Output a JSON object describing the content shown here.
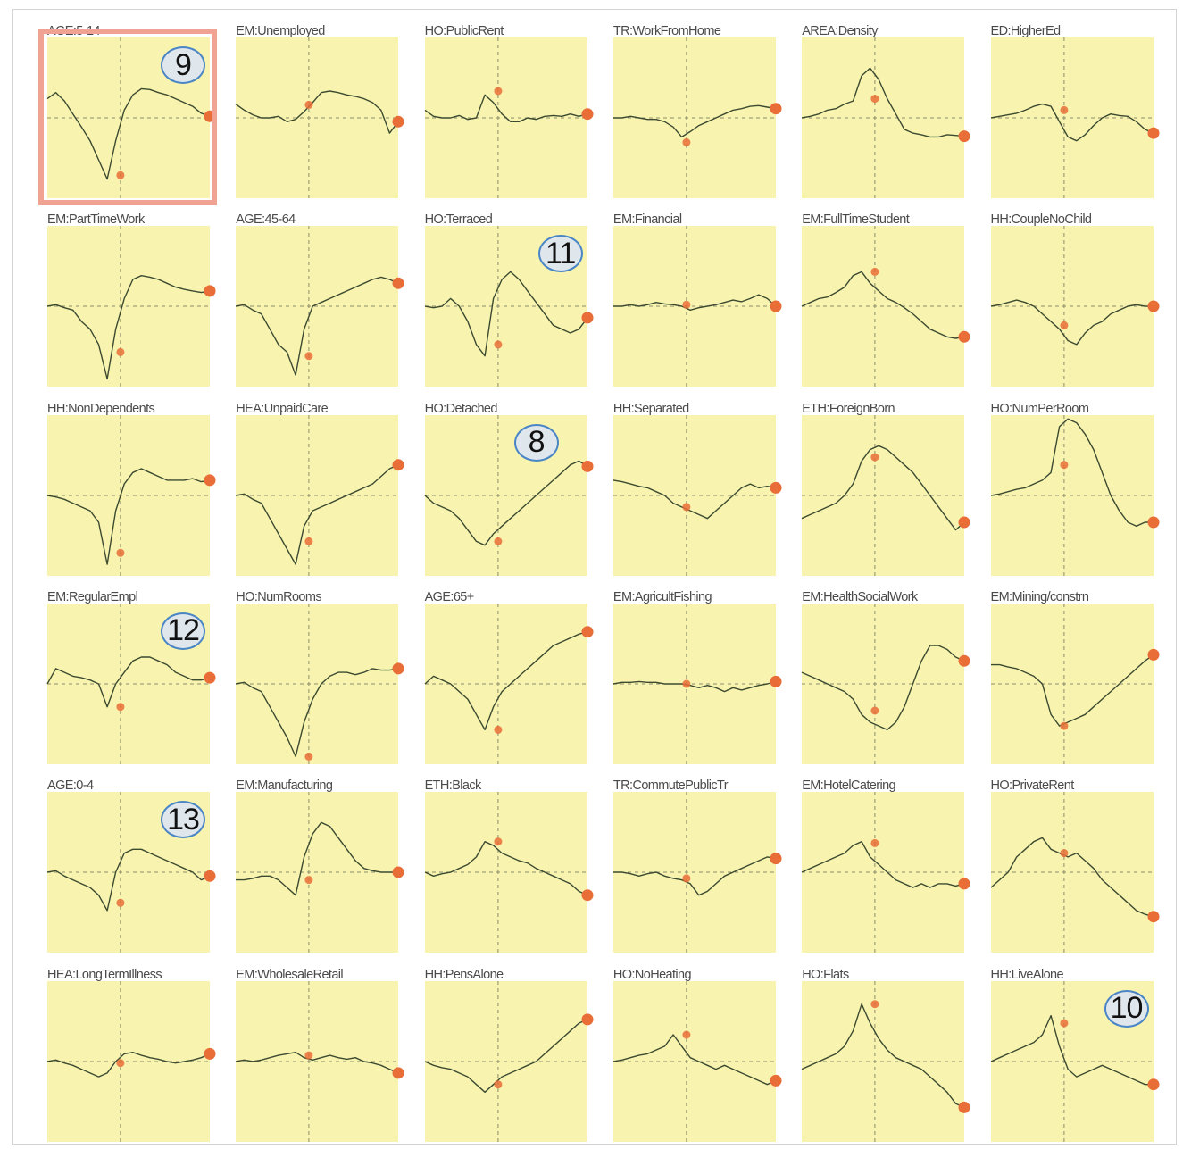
{
  "chart_data": {
    "type": "line",
    "layout": "small-multiples grid, 6 columns x 6 rows",
    "x_axis": "unlabeled",
    "y_axis": "unlabeled",
    "grid": "dashed crosshair at center of each panel",
    "plot_background": "#f8f4b0",
    "line_color": "#3c4a30",
    "marker_color": "#e86d37",
    "highlighted_panel": "AGE:5-14",
    "highlight_color": "#f0a392",
    "panels": [
      {
        "name": "AGE:5-14",
        "values": [
          0.25,
          0.33,
          0.22,
          0.05,
          -0.12,
          -0.3,
          -0.55,
          -0.8,
          -0.3,
          0.1,
          0.3,
          0.38,
          0.37,
          0.33,
          0.3,
          0.25,
          0.2,
          0.15,
          0.06,
          0.02
        ],
        "marker_x": 0.45,
        "marker_y": -0.75,
        "end_y": 0.02,
        "callout": "9"
      },
      {
        "name": "EM:Unemployed",
        "values": [
          0.18,
          0.1,
          0.04,
          0,
          0,
          0.02,
          -0.05,
          -0.02,
          0.08,
          0.2,
          0.33,
          0.35,
          0.33,
          0.3,
          0.28,
          0.25,
          0.2,
          0.1,
          -0.2,
          -0.05
        ],
        "marker_x": 0.45,
        "marker_y": 0.17,
        "end_y": -0.05
      },
      {
        "name": "HO:PublicRent",
        "values": [
          0.1,
          0.02,
          0,
          0,
          0.03,
          -0.02,
          0.0,
          0.3,
          0.2,
          0.05,
          -0.05,
          -0.05,
          0,
          -0.02,
          0.02,
          0.03,
          0.02,
          0.05,
          0.02,
          0.05
        ],
        "marker_x": 0.45,
        "marker_y": 0.35,
        "end_y": 0.05
      },
      {
        "name": "TR:WorkFromHome",
        "values": [
          0,
          0.0,
          0.02,
          0.0,
          -0.02,
          -0.02,
          -0.05,
          -0.12,
          -0.25,
          -0.18,
          -0.1,
          -0.05,
          0.0,
          0.05,
          0.1,
          0.12,
          0.15,
          0.16,
          0.14,
          0.12
        ],
        "marker_x": 0.45,
        "marker_y": -0.32,
        "end_y": 0.12
      },
      {
        "name": "AREA:Density",
        "values": [
          0.0,
          0.02,
          0.05,
          0.1,
          0.12,
          0.18,
          0.22,
          0.55,
          0.65,
          0.5,
          0.25,
          0.05,
          -0.15,
          -0.2,
          -0.22,
          -0.25,
          -0.25,
          -0.22,
          -0.23,
          -0.24
        ],
        "marker_x": 0.45,
        "marker_y": 0.25,
        "end_y": -0.24
      },
      {
        "name": "ED:HigherEd",
        "values": [
          0.0,
          0.02,
          0.04,
          0.06,
          0.1,
          0.15,
          0.18,
          0.15,
          -0.05,
          -0.25,
          -0.3,
          -0.22,
          -0.1,
          0.0,
          0.05,
          0.03,
          0.02,
          -0.05,
          -0.15,
          -0.2
        ],
        "marker_x": 0.45,
        "marker_y": 0.1,
        "end_y": -0.2
      },
      {
        "name": "EM:PartTimeWork",
        "values": [
          0.0,
          0.02,
          -0.02,
          -0.05,
          -0.2,
          -0.3,
          -0.5,
          -0.95,
          -0.3,
          0.1,
          0.35,
          0.4,
          0.38,
          0.35,
          0.3,
          0.25,
          0.22,
          0.2,
          0.18,
          0.2
        ],
        "marker_x": 0.45,
        "marker_y": -0.6,
        "end_y": 0.2
      },
      {
        "name": "AGE:45-64",
        "values": [
          0.0,
          0.02,
          -0.05,
          -0.1,
          -0.3,
          -0.5,
          -0.6,
          -0.9,
          -0.3,
          0.0,
          0.05,
          0.1,
          0.15,
          0.2,
          0.25,
          0.3,
          0.35,
          0.38,
          0.35,
          0.3
        ],
        "marker_x": 0.45,
        "marker_y": -0.65,
        "end_y": 0.3
      },
      {
        "name": "HO:Terraced",
        "values": [
          0.0,
          -0.02,
          0.0,
          0.1,
          0.0,
          -0.2,
          -0.5,
          -0.65,
          0.1,
          0.35,
          0.45,
          0.35,
          0.2,
          0.05,
          -0.1,
          -0.25,
          -0.3,
          -0.35,
          -0.3,
          -0.15
        ],
        "marker_x": 0.45,
        "marker_y": -0.5,
        "end_y": -0.15,
        "callout": "11"
      },
      {
        "name": "EM:Financial",
        "values": [
          0.0,
          0.0,
          0.02,
          0.0,
          0.02,
          0.05,
          0.03,
          0.02,
          0.0,
          -0.05,
          -0.02,
          0.0,
          0.02,
          0.05,
          0.08,
          0.06,
          0.1,
          0.15,
          0.1,
          0.0
        ],
        "marker_x": 0.45,
        "marker_y": 0.02,
        "end_y": 0.0
      },
      {
        "name": "EM:FullTimeStudent",
        "values": [
          0.0,
          0.05,
          0.1,
          0.12,
          0.18,
          0.25,
          0.4,
          0.45,
          0.3,
          0.2,
          0.1,
          0.05,
          -0.02,
          -0.1,
          -0.2,
          -0.3,
          -0.35,
          -0.4,
          -0.42,
          -0.4
        ],
        "marker_x": 0.45,
        "marker_y": 0.45,
        "end_y": -0.4
      },
      {
        "name": "HH:CoupleNoChild",
        "values": [
          0.0,
          0.02,
          0.05,
          0.08,
          0.05,
          0.0,
          -0.1,
          -0.2,
          -0.3,
          -0.45,
          -0.5,
          -0.35,
          -0.25,
          -0.2,
          -0.1,
          -0.05,
          0.0,
          0.02,
          0.0,
          0.0
        ],
        "marker_x": 0.45,
        "marker_y": -0.25,
        "end_y": 0.0
      },
      {
        "name": "HH:NonDependents",
        "values": [
          0.0,
          -0.02,
          -0.05,
          -0.1,
          -0.15,
          -0.2,
          -0.35,
          -0.9,
          -0.2,
          0.15,
          0.3,
          0.35,
          0.3,
          0.25,
          0.2,
          0.2,
          0.2,
          0.22,
          0.18,
          0.2
        ],
        "marker_x": 0.45,
        "marker_y": -0.75,
        "end_y": 0.2
      },
      {
        "name": "HEA:UnpaidCare",
        "values": [
          0.0,
          0.02,
          -0.05,
          -0.1,
          -0.3,
          -0.5,
          -0.7,
          -0.9,
          -0.4,
          -0.2,
          -0.15,
          -0.1,
          -0.05,
          0.0,
          0.05,
          0.1,
          0.15,
          0.25,
          0.35,
          0.4
        ],
        "marker_x": 0.45,
        "marker_y": -0.6,
        "end_y": 0.4
      },
      {
        "name": "HO:Detached",
        "values": [
          0.0,
          -0.1,
          -0.15,
          -0.2,
          -0.3,
          -0.45,
          -0.6,
          -0.65,
          -0.5,
          -0.4,
          -0.3,
          -0.2,
          -0.1,
          0.0,
          0.1,
          0.2,
          0.3,
          0.4,
          0.45,
          0.38
        ],
        "marker_x": 0.45,
        "marker_y": -0.6,
        "end_y": 0.38,
        "callout": "8"
      },
      {
        "name": "HH:Separated",
        "values": [
          0.2,
          0.18,
          0.15,
          0.12,
          0.1,
          0.05,
          0.0,
          -0.1,
          -0.15,
          -0.2,
          -0.25,
          -0.3,
          -0.2,
          -0.1,
          0.0,
          0.1,
          0.15,
          0.1,
          0.12,
          0.1
        ],
        "marker_x": 0.45,
        "marker_y": -0.15,
        "end_y": 0.1
      },
      {
        "name": "ETH:ForeignBorn",
        "values": [
          -0.3,
          -0.25,
          -0.2,
          -0.15,
          -0.1,
          0.0,
          0.15,
          0.45,
          0.6,
          0.65,
          0.6,
          0.5,
          0.4,
          0.3,
          0.15,
          0.0,
          -0.15,
          -0.3,
          -0.45,
          -0.35
        ],
        "marker_x": 0.45,
        "marker_y": 0.5,
        "end_y": -0.35
      },
      {
        "name": "HO:NumPerRoom",
        "values": [
          0.0,
          0.02,
          0.05,
          0.08,
          0.1,
          0.15,
          0.2,
          0.3,
          0.9,
          1.0,
          0.95,
          0.8,
          0.6,
          0.3,
          0.0,
          -0.2,
          -0.35,
          -0.4,
          -0.35,
          -0.35
        ],
        "marker_x": 0.45,
        "marker_y": 0.4,
        "end_y": -0.35
      },
      {
        "name": "EM:RegularEmpl",
        "values": [
          0.0,
          0.2,
          0.15,
          0.1,
          0.08,
          0.05,
          0.0,
          -0.3,
          0.0,
          0.15,
          0.3,
          0.35,
          0.35,
          0.3,
          0.25,
          0.15,
          0.1,
          0.05,
          0.05,
          0.08
        ],
        "marker_x": 0.45,
        "marker_y": -0.3,
        "end_y": 0.08,
        "callout": "12"
      },
      {
        "name": "HO:NumRooms",
        "values": [
          0.0,
          0.02,
          -0.05,
          -0.1,
          -0.3,
          -0.5,
          -0.7,
          -0.95,
          -0.5,
          -0.2,
          0.0,
          0.1,
          0.15,
          0.15,
          0.12,
          0.15,
          0.2,
          0.18,
          0.18,
          0.2
        ],
        "marker_x": 0.45,
        "marker_y": -0.95,
        "end_y": 0.2
      },
      {
        "name": "AGE:65+",
        "values": [
          0.0,
          0.1,
          0.05,
          0.0,
          -0.1,
          -0.2,
          -0.4,
          -0.6,
          -0.3,
          -0.1,
          0.0,
          0.1,
          0.2,
          0.3,
          0.4,
          0.5,
          0.55,
          0.6,
          0.65,
          0.68
        ],
        "marker_x": 0.45,
        "marker_y": -0.6,
        "end_y": 0.68
      },
      {
        "name": "EM:AgricultFishing",
        "values": [
          0.0,
          0.02,
          0.02,
          0.03,
          0.02,
          0.02,
          0.0,
          0.0,
          0.0,
          -0.02,
          -0.05,
          -0.02,
          -0.05,
          -0.1,
          -0.05,
          -0.08,
          -0.05,
          -0.02,
          0.0,
          0.03
        ],
        "marker_x": 0.45,
        "marker_y": 0.0,
        "end_y": 0.03
      },
      {
        "name": "EM:HealthSocialWork",
        "values": [
          0.15,
          0.1,
          0.05,
          0.0,
          -0.05,
          -0.1,
          -0.2,
          -0.4,
          -0.5,
          -0.55,
          -0.6,
          -0.5,
          -0.3,
          0.0,
          0.3,
          0.5,
          0.5,
          0.45,
          0.35,
          0.3
        ],
        "marker_x": 0.45,
        "marker_y": -0.35,
        "end_y": 0.3
      },
      {
        "name": "EM:Mining/constrn",
        "values": [
          0.25,
          0.25,
          0.22,
          0.2,
          0.15,
          0.1,
          0.0,
          -0.4,
          -0.55,
          -0.5,
          -0.45,
          -0.4,
          -0.3,
          -0.2,
          -0.1,
          0.0,
          0.1,
          0.2,
          0.3,
          0.38
        ],
        "marker_x": 0.45,
        "marker_y": -0.55,
        "end_y": 0.38
      },
      {
        "name": "AGE:0-4",
        "values": [
          0.0,
          0.02,
          -0.05,
          -0.1,
          -0.15,
          -0.2,
          -0.3,
          -0.5,
          0.0,
          0.25,
          0.3,
          0.3,
          0.25,
          0.2,
          0.15,
          0.1,
          0.05,
          0.0,
          -0.1,
          -0.05
        ],
        "marker_x": 0.45,
        "marker_y": -0.4,
        "end_y": -0.05,
        "callout": "13"
      },
      {
        "name": "EM:Manufacturing",
        "values": [
          -0.1,
          -0.1,
          -0.08,
          -0.05,
          -0.05,
          -0.1,
          -0.2,
          -0.3,
          0.2,
          0.5,
          0.65,
          0.6,
          0.45,
          0.3,
          0.15,
          0.05,
          0.02,
          0.0,
          0.0,
          0.0
        ],
        "marker_x": 0.45,
        "marker_y": -0.1,
        "end_y": 0.0
      },
      {
        "name": "ETH:Black",
        "values": [
          0.0,
          -0.05,
          -0.02,
          0.0,
          0.05,
          0.1,
          0.2,
          0.4,
          0.35,
          0.25,
          0.2,
          0.15,
          0.12,
          0.05,
          0.0,
          -0.05,
          -0.1,
          -0.15,
          -0.25,
          -0.3
        ],
        "marker_x": 0.45,
        "marker_y": 0.4,
        "end_y": -0.3
      },
      {
        "name": "TR:CommutePublicTr",
        "values": [
          0.0,
          0.0,
          -0.02,
          -0.05,
          -0.02,
          0.0,
          -0.05,
          -0.08,
          -0.1,
          -0.15,
          -0.3,
          -0.25,
          -0.15,
          -0.05,
          0.0,
          0.05,
          0.1,
          0.15,
          0.2,
          0.18
        ],
        "marker_x": 0.45,
        "marker_y": -0.08,
        "end_y": 0.18
      },
      {
        "name": "EM:HotelCatering",
        "values": [
          0.0,
          0.05,
          0.1,
          0.15,
          0.2,
          0.25,
          0.35,
          0.4,
          0.2,
          0.1,
          0.0,
          -0.1,
          -0.15,
          -0.2,
          -0.15,
          -0.2,
          -0.15,
          -0.15,
          -0.18,
          -0.15
        ],
        "marker_x": 0.45,
        "marker_y": 0.38,
        "end_y": -0.15
      },
      {
        "name": "HO:PrivateRent",
        "values": [
          -0.2,
          -0.1,
          0.0,
          0.2,
          0.3,
          0.4,
          0.45,
          0.3,
          0.25,
          0.2,
          0.25,
          0.15,
          0.05,
          -0.1,
          -0.2,
          -0.3,
          -0.4,
          -0.5,
          -0.55,
          -0.58
        ],
        "marker_x": 0.45,
        "marker_y": 0.25,
        "end_y": -0.58
      },
      {
        "name": "HEA:LongTermIllness",
        "values": [
          0.0,
          0.02,
          -0.02,
          -0.05,
          -0.1,
          -0.15,
          -0.2,
          -0.15,
          0.0,
          0.1,
          0.12,
          0.08,
          0.05,
          0.03,
          0.0,
          -0.02,
          0.0,
          0.02,
          0.05,
          0.1
        ],
        "marker_x": 0.45,
        "marker_y": -0.02,
        "end_y": 0.1
      },
      {
        "name": "EM:WholesaleRetail",
        "values": [
          0.0,
          0.02,
          0.0,
          0.02,
          0.05,
          0.08,
          0.1,
          0.12,
          0.05,
          0.02,
          0.05,
          0.08,
          0.05,
          0.03,
          0.05,
          0.0,
          -0.02,
          -0.05,
          -0.1,
          -0.15
        ],
        "marker_x": 0.45,
        "marker_y": 0.08,
        "end_y": -0.15
      },
      {
        "name": "HH:PensAlone",
        "values": [
          0.0,
          -0.05,
          -0.08,
          -0.1,
          -0.15,
          -0.2,
          -0.3,
          -0.4,
          -0.3,
          -0.2,
          -0.15,
          -0.1,
          -0.05,
          0.0,
          0.1,
          0.2,
          0.3,
          0.4,
          0.5,
          0.55
        ],
        "marker_x": 0.45,
        "marker_y": -0.3,
        "end_y": 0.55
      },
      {
        "name": "HO:NoHeating",
        "values": [
          0.0,
          0.02,
          0.05,
          0.08,
          0.1,
          0.15,
          0.2,
          0.35,
          0.2,
          0.05,
          0.0,
          -0.05,
          -0.1,
          -0.05,
          -0.1,
          -0.15,
          -0.2,
          -0.25,
          -0.3,
          -0.25
        ],
        "marker_x": 0.45,
        "marker_y": 0.35,
        "end_y": -0.25
      },
      {
        "name": "HO:Flats",
        "values": [
          -0.1,
          -0.05,
          0.0,
          0.05,
          0.1,
          0.2,
          0.4,
          0.75,
          0.5,
          0.3,
          0.15,
          0.05,
          0.0,
          -0.05,
          -0.1,
          -0.2,
          -0.3,
          -0.4,
          -0.55,
          -0.6
        ],
        "marker_x": 0.45,
        "marker_y": 0.75,
        "end_y": -0.6
      },
      {
        "name": "HH:LiveAlone",
        "values": [
          0.0,
          0.05,
          0.1,
          0.15,
          0.2,
          0.25,
          0.35,
          0.6,
          0.2,
          -0.1,
          -0.2,
          -0.15,
          -0.1,
          -0.05,
          -0.1,
          -0.15,
          -0.2,
          -0.25,
          -0.3,
          -0.3
        ],
        "marker_x": 0.45,
        "marker_y": 0.5,
        "end_y": -0.3,
        "callout": "10"
      }
    ]
  }
}
